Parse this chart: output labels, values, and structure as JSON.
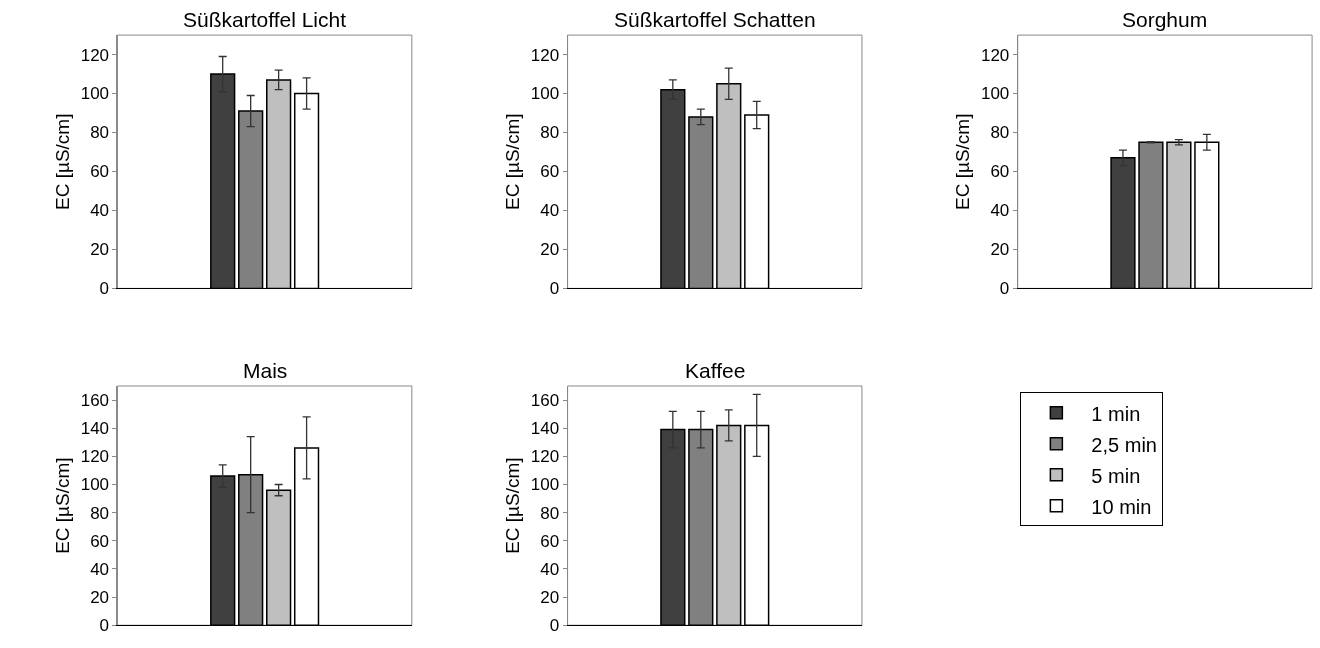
{
  "chart_data": [
    {
      "type": "bar",
      "title": "Süßkartoffel Licht",
      "ylabel": "EC [µS/cm]",
      "categories": [
        null
      ],
      "ylim": [
        0,
        130
      ],
      "yticks": [
        0,
        20,
        40,
        60,
        80,
        100,
        120
      ],
      "grid": false,
      "series": [
        {
          "color": "#404040",
          "values": [
            110
          ],
          "errors": [
            9
          ]
        },
        {
          "color": "#808080",
          "values": [
            91
          ],
          "errors": [
            8
          ]
        },
        {
          "color": "#bfbfbf",
          "values": [
            107
          ],
          "errors": [
            5
          ]
        },
        {
          "color": "#ffffff",
          "values": [
            100
          ],
          "errors": [
            8
          ]
        }
      ]
    },
    {
      "type": "bar",
      "title": "Süßkartoffel Schatten",
      "ylabel": "EC [µS/cm]",
      "categories": [
        null
      ],
      "ylim": [
        0,
        130
      ],
      "yticks": [
        0,
        20,
        40,
        60,
        80,
        100,
        120
      ],
      "grid": false,
      "series": [
        {
          "color": "#404040",
          "values": [
            102
          ],
          "errors": [
            5
          ]
        },
        {
          "color": "#808080",
          "values": [
            88
          ],
          "errors": [
            4
          ]
        },
        {
          "color": "#bfbfbf",
          "values": [
            105
          ],
          "errors": [
            8
          ]
        },
        {
          "color": "#ffffff",
          "values": [
            89
          ],
          "errors": [
            7
          ]
        }
      ]
    },
    {
      "type": "bar",
      "title": "Sorghum",
      "ylabel": "EC [µS/cm]",
      "categories": [
        null
      ],
      "ylim": [
        0,
        130
      ],
      "yticks": [
        0,
        20,
        40,
        60,
        80,
        100,
        120
      ],
      "grid": false,
      "series": [
        {
          "color": "#404040",
          "values": [
            67
          ],
          "errors": [
            4
          ]
        },
        {
          "color": "#808080",
          "values": [
            75
          ],
          "errors": [
            0.3
          ]
        },
        {
          "color": "#bfbfbf",
          "values": [
            75
          ],
          "errors": [
            1.3
          ]
        },
        {
          "color": "#ffffff",
          "values": [
            75
          ],
          "errors": [
            4
          ]
        }
      ]
    },
    {
      "type": "bar",
      "title": "Mais",
      "ylabel": "EC [µS/cm]",
      "categories": [
        null
      ],
      "ylim": [
        0,
        170
      ],
      "yticks": [
        0,
        20,
        40,
        60,
        80,
        100,
        120,
        140,
        160
      ],
      "grid": false,
      "series": [
        {
          "color": "#404040",
          "values": [
            106
          ],
          "errors": [
            8
          ]
        },
        {
          "color": "#808080",
          "values": [
            107
          ],
          "errors": [
            27
          ]
        },
        {
          "color": "#bfbfbf",
          "values": [
            96
          ],
          "errors": [
            4
          ]
        },
        {
          "color": "#ffffff",
          "values": [
            126
          ],
          "errors": [
            22
          ]
        }
      ]
    },
    {
      "type": "bar",
      "title": "Kaffee",
      "ylabel": "EC [µS/cm]",
      "categories": [
        null
      ],
      "ylim": [
        0,
        170
      ],
      "yticks": [
        0,
        20,
        40,
        60,
        80,
        100,
        120,
        140,
        160
      ],
      "grid": false,
      "legend": "right",
      "series": [
        {
          "name": "1 min",
          "color": "#404040",
          "values": [
            139
          ],
          "errors": [
            13
          ]
        },
        {
          "name": "2,5 min",
          "color": "#808080",
          "values": [
            139
          ],
          "errors": [
            13
          ]
        },
        {
          "name": "5 min",
          "color": "#bfbfbf",
          "values": [
            142
          ],
          "errors": [
            11
          ]
        },
        {
          "name": "10 min",
          "color": "#ffffff",
          "values": [
            142
          ],
          "errors": [
            22
          ]
        }
      ]
    }
  ]
}
